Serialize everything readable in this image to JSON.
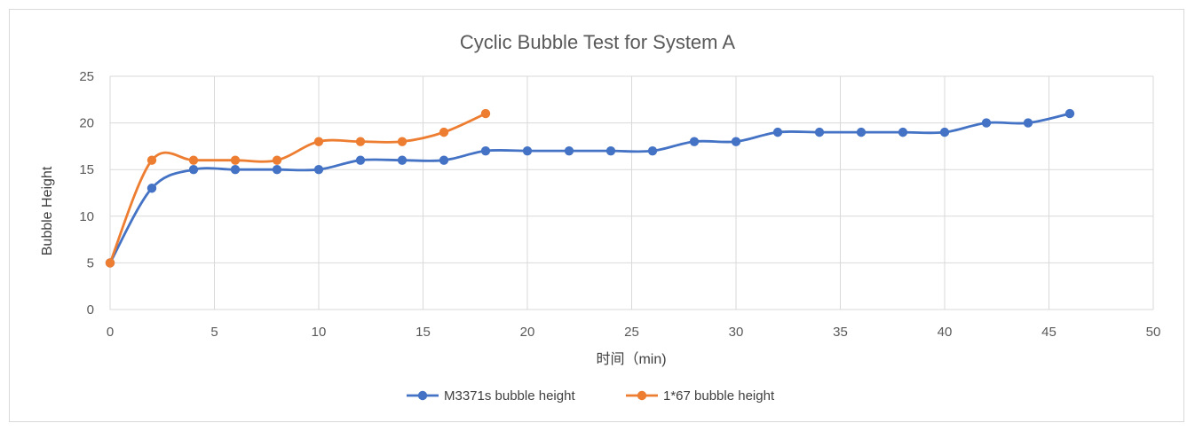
{
  "chart_data": {
    "type": "line",
    "title": "Cyclic Bubble Test for System A",
    "xlabel": "时间（min)",
    "ylabel": "Bubble Height",
    "xlim": [
      0,
      50
    ],
    "ylim": [
      0,
      25
    ],
    "xticks": [
      0,
      5,
      10,
      15,
      20,
      25,
      30,
      35,
      40,
      45,
      50
    ],
    "yticks": [
      0,
      5,
      10,
      15,
      20,
      25
    ],
    "grid": true,
    "smooth": true,
    "legend_position": "bottom",
    "series": [
      {
        "name": "M3371s bubble height",
        "color": "#4472c4",
        "x": [
          0,
          2,
          4,
          6,
          8,
          10,
          12,
          14,
          16,
          18,
          20,
          22,
          24,
          26,
          28,
          30,
          32,
          34,
          36,
          38,
          40,
          42,
          44,
          46
        ],
        "y": [
          5,
          13,
          15,
          15,
          15,
          15,
          16,
          16,
          16,
          17,
          17,
          17,
          17,
          17,
          18,
          18,
          19,
          19,
          19,
          19,
          19,
          20,
          20,
          21
        ]
      },
      {
        "name": "1*67 bubble height",
        "color": "#ed7d31",
        "x": [
          0,
          2,
          4,
          6,
          8,
          10,
          12,
          14,
          16,
          18
        ],
        "y": [
          5,
          16,
          16,
          16,
          16,
          18,
          18,
          18,
          19,
          21
        ]
      }
    ]
  }
}
